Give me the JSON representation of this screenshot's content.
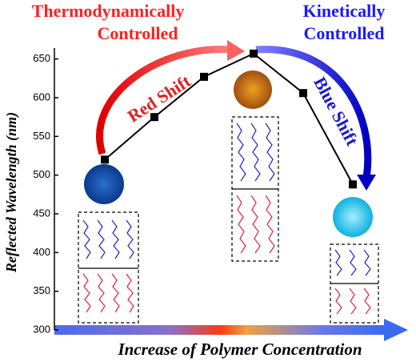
{
  "chart_data": {
    "type": "line",
    "y_label": "Reflected Wavelength (nm)",
    "x_label": "Increase of Polymer Concentration",
    "left_note": [
      "Thermodynamically",
      "Controlled"
    ],
    "right_note": [
      "Kinetically",
      "Controlled"
    ],
    "left_arrow_label": "Red Shift",
    "right_arrow_label": "Blue Shift",
    "categories": [
      null,
      null,
      null,
      null,
      null,
      null
    ],
    "values": [
      520,
      575,
      627,
      657,
      606,
      488
    ],
    "color": "#000000",
    "ylim": [
      300,
      660
    ],
    "yticks": [
      300,
      350,
      400,
      450,
      500,
      550,
      600,
      650
    ]
  }
}
